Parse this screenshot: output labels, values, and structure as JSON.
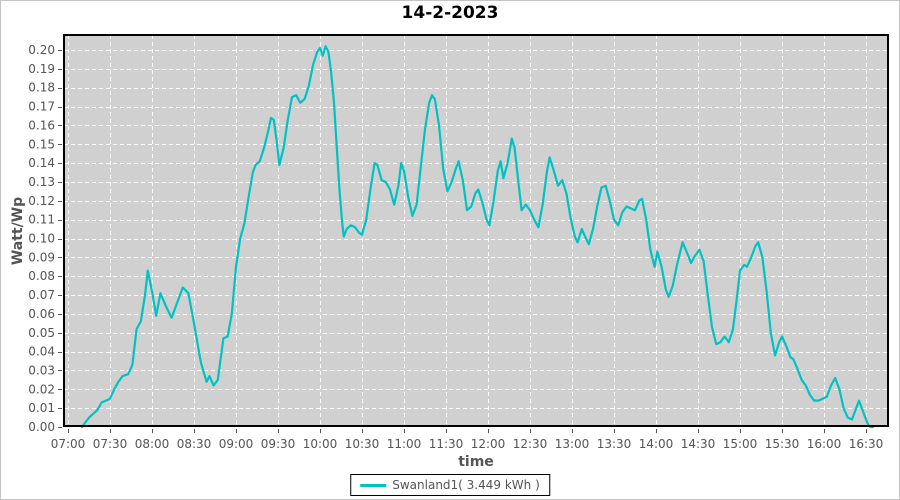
{
  "title": "14-2-2023",
  "x_axis": {
    "label": "time",
    "tick_labels": [
      "07:00",
      "07:30",
      "08:00",
      "08:30",
      "09:00",
      "09:30",
      "10:00",
      "10:30",
      "11:00",
      "11:30",
      "12:00",
      "12:30",
      "13:00",
      "13:30",
      "14:00",
      "14:30",
      "15:00",
      "15:30",
      "16:00",
      "16:30"
    ]
  },
  "y_axis": {
    "label": "Watt/Wp",
    "tick_labels": [
      "0.00",
      "0.01",
      "0.02",
      "0.03",
      "0.04",
      "0.05",
      "0.06",
      "0.07",
      "0.08",
      "0.09",
      "0.10",
      "0.11",
      "0.12",
      "0.13",
      "0.14",
      "0.15",
      "0.16",
      "0.17",
      "0.18",
      "0.19",
      "0.20"
    ]
  },
  "legend": {
    "label": "Swanland1( 3.449 kWh )"
  },
  "colors": {
    "line": "#00c2c4",
    "plot_bg": "#d0d0d0",
    "grid": "#ffffff",
    "axis_text": "#555555",
    "frame": "#000000",
    "title_text": "#000000"
  },
  "chart_data": {
    "type": "line",
    "title": "14-2-2023",
    "xlabel": "time",
    "ylabel": "Watt/Wp",
    "grid": true,
    "legend_position": "bottom-center",
    "series_name": "Swanland1",
    "series_legend": "Swanland1( 3.449 kWh )",
    "x_unit": "minutes after 07:00",
    "xlim_minutes": [
      -3.6,
      586.4
    ],
    "ylim": [
      0,
      0.2085
    ],
    "x_tick_minutes": [
      0,
      30,
      60,
      90,
      120,
      150,
      180,
      210,
      240,
      270,
      300,
      330,
      360,
      390,
      420,
      450,
      480,
      510,
      540,
      570
    ],
    "y_ticks": [
      0,
      0.01,
      0.02,
      0.03,
      0.04,
      0.05,
      0.06,
      0.07,
      0.08,
      0.09,
      0.1,
      0.11,
      0.12,
      0.13,
      0.14,
      0.15,
      0.16,
      0.17,
      0.18,
      0.19,
      0.2
    ],
    "points": [
      [
        10,
        0.0
      ],
      [
        12,
        0.002
      ],
      [
        15,
        0.005
      ],
      [
        18,
        0.007
      ],
      [
        21,
        0.009
      ],
      [
        24,
        0.013
      ],
      [
        27,
        0.014
      ],
      [
        30,
        0.015
      ],
      [
        33,
        0.02
      ],
      [
        36,
        0.024
      ],
      [
        39,
        0.027
      ],
      [
        43,
        0.028
      ],
      [
        46,
        0.033
      ],
      [
        49,
        0.052
      ],
      [
        52,
        0.056
      ],
      [
        55,
        0.07
      ],
      [
        57,
        0.083
      ],
      [
        60,
        0.072
      ],
      [
        63,
        0.059
      ],
      [
        66,
        0.071
      ],
      [
        70,
        0.064
      ],
      [
        74,
        0.058
      ],
      [
        78,
        0.066
      ],
      [
        82,
        0.074
      ],
      [
        86,
        0.071
      ],
      [
        90,
        0.055
      ],
      [
        95,
        0.034
      ],
      [
        99,
        0.024
      ],
      [
        101,
        0.027
      ],
      [
        104,
        0.022
      ],
      [
        107,
        0.025
      ],
      [
        109,
        0.036
      ],
      [
        111,
        0.047
      ],
      [
        114,
        0.048
      ],
      [
        117,
        0.06
      ],
      [
        120,
        0.085
      ],
      [
        123,
        0.1
      ],
      [
        126,
        0.108
      ],
      [
        129,
        0.122
      ],
      [
        132,
        0.135
      ],
      [
        134,
        0.139
      ],
      [
        137,
        0.141
      ],
      [
        140,
        0.148
      ],
      [
        143,
        0.157
      ],
      [
        145,
        0.164
      ],
      [
        147,
        0.163
      ],
      [
        149,
        0.152
      ],
      [
        151,
        0.139
      ],
      [
        154,
        0.148
      ],
      [
        157,
        0.163
      ],
      [
        160,
        0.175
      ],
      [
        163,
        0.176
      ],
      [
        166,
        0.172
      ],
      [
        169,
        0.174
      ],
      [
        172,
        0.181
      ],
      [
        175,
        0.192
      ],
      [
        178,
        0.199
      ],
      [
        180,
        0.201
      ],
      [
        182,
        0.197
      ],
      [
        184,
        0.202
      ],
      [
        186,
        0.199
      ],
      [
        188,
        0.188
      ],
      [
        190,
        0.172
      ],
      [
        192,
        0.148
      ],
      [
        194,
        0.125
      ],
      [
        196,
        0.107
      ],
      [
        197,
        0.101
      ],
      [
        199,
        0.105
      ],
      [
        202,
        0.107
      ],
      [
        205,
        0.106
      ],
      [
        208,
        0.103
      ],
      [
        210,
        0.102
      ],
      [
        213,
        0.11
      ],
      [
        216,
        0.126
      ],
      [
        219,
        0.14
      ],
      [
        221,
        0.139
      ],
      [
        224,
        0.131
      ],
      [
        227,
        0.13
      ],
      [
        230,
        0.126
      ],
      [
        233,
        0.118
      ],
      [
        236,
        0.128
      ],
      [
        238,
        0.14
      ],
      [
        240,
        0.136
      ],
      [
        243,
        0.122
      ],
      [
        246,
        0.112
      ],
      [
        249,
        0.118
      ],
      [
        252,
        0.138
      ],
      [
        255,
        0.158
      ],
      [
        258,
        0.172
      ],
      [
        260,
        0.176
      ],
      [
        262,
        0.174
      ],
      [
        265,
        0.16
      ],
      [
        268,
        0.137
      ],
      [
        271,
        0.125
      ],
      [
        274,
        0.13
      ],
      [
        277,
        0.137
      ],
      [
        279,
        0.141
      ],
      [
        282,
        0.131
      ],
      [
        285,
        0.115
      ],
      [
        288,
        0.117
      ],
      [
        291,
        0.124
      ],
      [
        293,
        0.126
      ],
      [
        296,
        0.119
      ],
      [
        299,
        0.11
      ],
      [
        301,
        0.107
      ],
      [
        304,
        0.12
      ],
      [
        307,
        0.136
      ],
      [
        309,
        0.141
      ],
      [
        311,
        0.132
      ],
      [
        314,
        0.14
      ],
      [
        317,
        0.153
      ],
      [
        319,
        0.148
      ],
      [
        322,
        0.128
      ],
      [
        324,
        0.115
      ],
      [
        327,
        0.118
      ],
      [
        330,
        0.115
      ],
      [
        333,
        0.11
      ],
      [
        336,
        0.106
      ],
      [
        339,
        0.118
      ],
      [
        342,
        0.135
      ],
      [
        344,
        0.143
      ],
      [
        347,
        0.136
      ],
      [
        350,
        0.128
      ],
      [
        353,
        0.131
      ],
      [
        356,
        0.124
      ],
      [
        359,
        0.111
      ],
      [
        362,
        0.101
      ],
      [
        364,
        0.098
      ],
      [
        367,
        0.105
      ],
      [
        370,
        0.1
      ],
      [
        372,
        0.097
      ],
      [
        375,
        0.105
      ],
      [
        378,
        0.117
      ],
      [
        381,
        0.127
      ],
      [
        384,
        0.128
      ],
      [
        387,
        0.12
      ],
      [
        390,
        0.11
      ],
      [
        393,
        0.107
      ],
      [
        396,
        0.114
      ],
      [
        399,
        0.117
      ],
      [
        402,
        0.116
      ],
      [
        405,
        0.115
      ],
      [
        408,
        0.12
      ],
      [
        410,
        0.121
      ],
      [
        413,
        0.11
      ],
      [
        416,
        0.094
      ],
      [
        419,
        0.085
      ],
      [
        421,
        0.093
      ],
      [
        424,
        0.085
      ],
      [
        427,
        0.073
      ],
      [
        429,
        0.069
      ],
      [
        432,
        0.075
      ],
      [
        435,
        0.086
      ],
      [
        439,
        0.098
      ],
      [
        443,
        0.091
      ],
      [
        445,
        0.087
      ],
      [
        448,
        0.091
      ],
      [
        451,
        0.094
      ],
      [
        454,
        0.088
      ],
      [
        457,
        0.07
      ],
      [
        460,
        0.053
      ],
      [
        463,
        0.044
      ],
      [
        466,
        0.045
      ],
      [
        469,
        0.048
      ],
      [
        472,
        0.045
      ],
      [
        475,
        0.052
      ],
      [
        478,
        0.07
      ],
      [
        480,
        0.083
      ],
      [
        483,
        0.086
      ],
      [
        485,
        0.085
      ],
      [
        488,
        0.09
      ],
      [
        491,
        0.096
      ],
      [
        493,
        0.098
      ],
      [
        496,
        0.09
      ],
      [
        499,
        0.072
      ],
      [
        502,
        0.05
      ],
      [
        505,
        0.038
      ],
      [
        508,
        0.045
      ],
      [
        510,
        0.048
      ],
      [
        513,
        0.043
      ],
      [
        516,
        0.037
      ],
      [
        518,
        0.036
      ],
      [
        521,
        0.031
      ],
      [
        524,
        0.025
      ],
      [
        527,
        0.022
      ],
      [
        530,
        0.017
      ],
      [
        533,
        0.014
      ],
      [
        536,
        0.014
      ],
      [
        539,
        0.015
      ],
      [
        542,
        0.016
      ],
      [
        545,
        0.022
      ],
      [
        548,
        0.026
      ],
      [
        551,
        0.02
      ],
      [
        554,
        0.01
      ],
      [
        557,
        0.005
      ],
      [
        560,
        0.004
      ],
      [
        563,
        0.01
      ],
      [
        565,
        0.014
      ],
      [
        568,
        0.008
      ],
      [
        571,
        0.002
      ],
      [
        573,
        0.0
      ],
      [
        575,
        0.0
      ]
    ]
  }
}
